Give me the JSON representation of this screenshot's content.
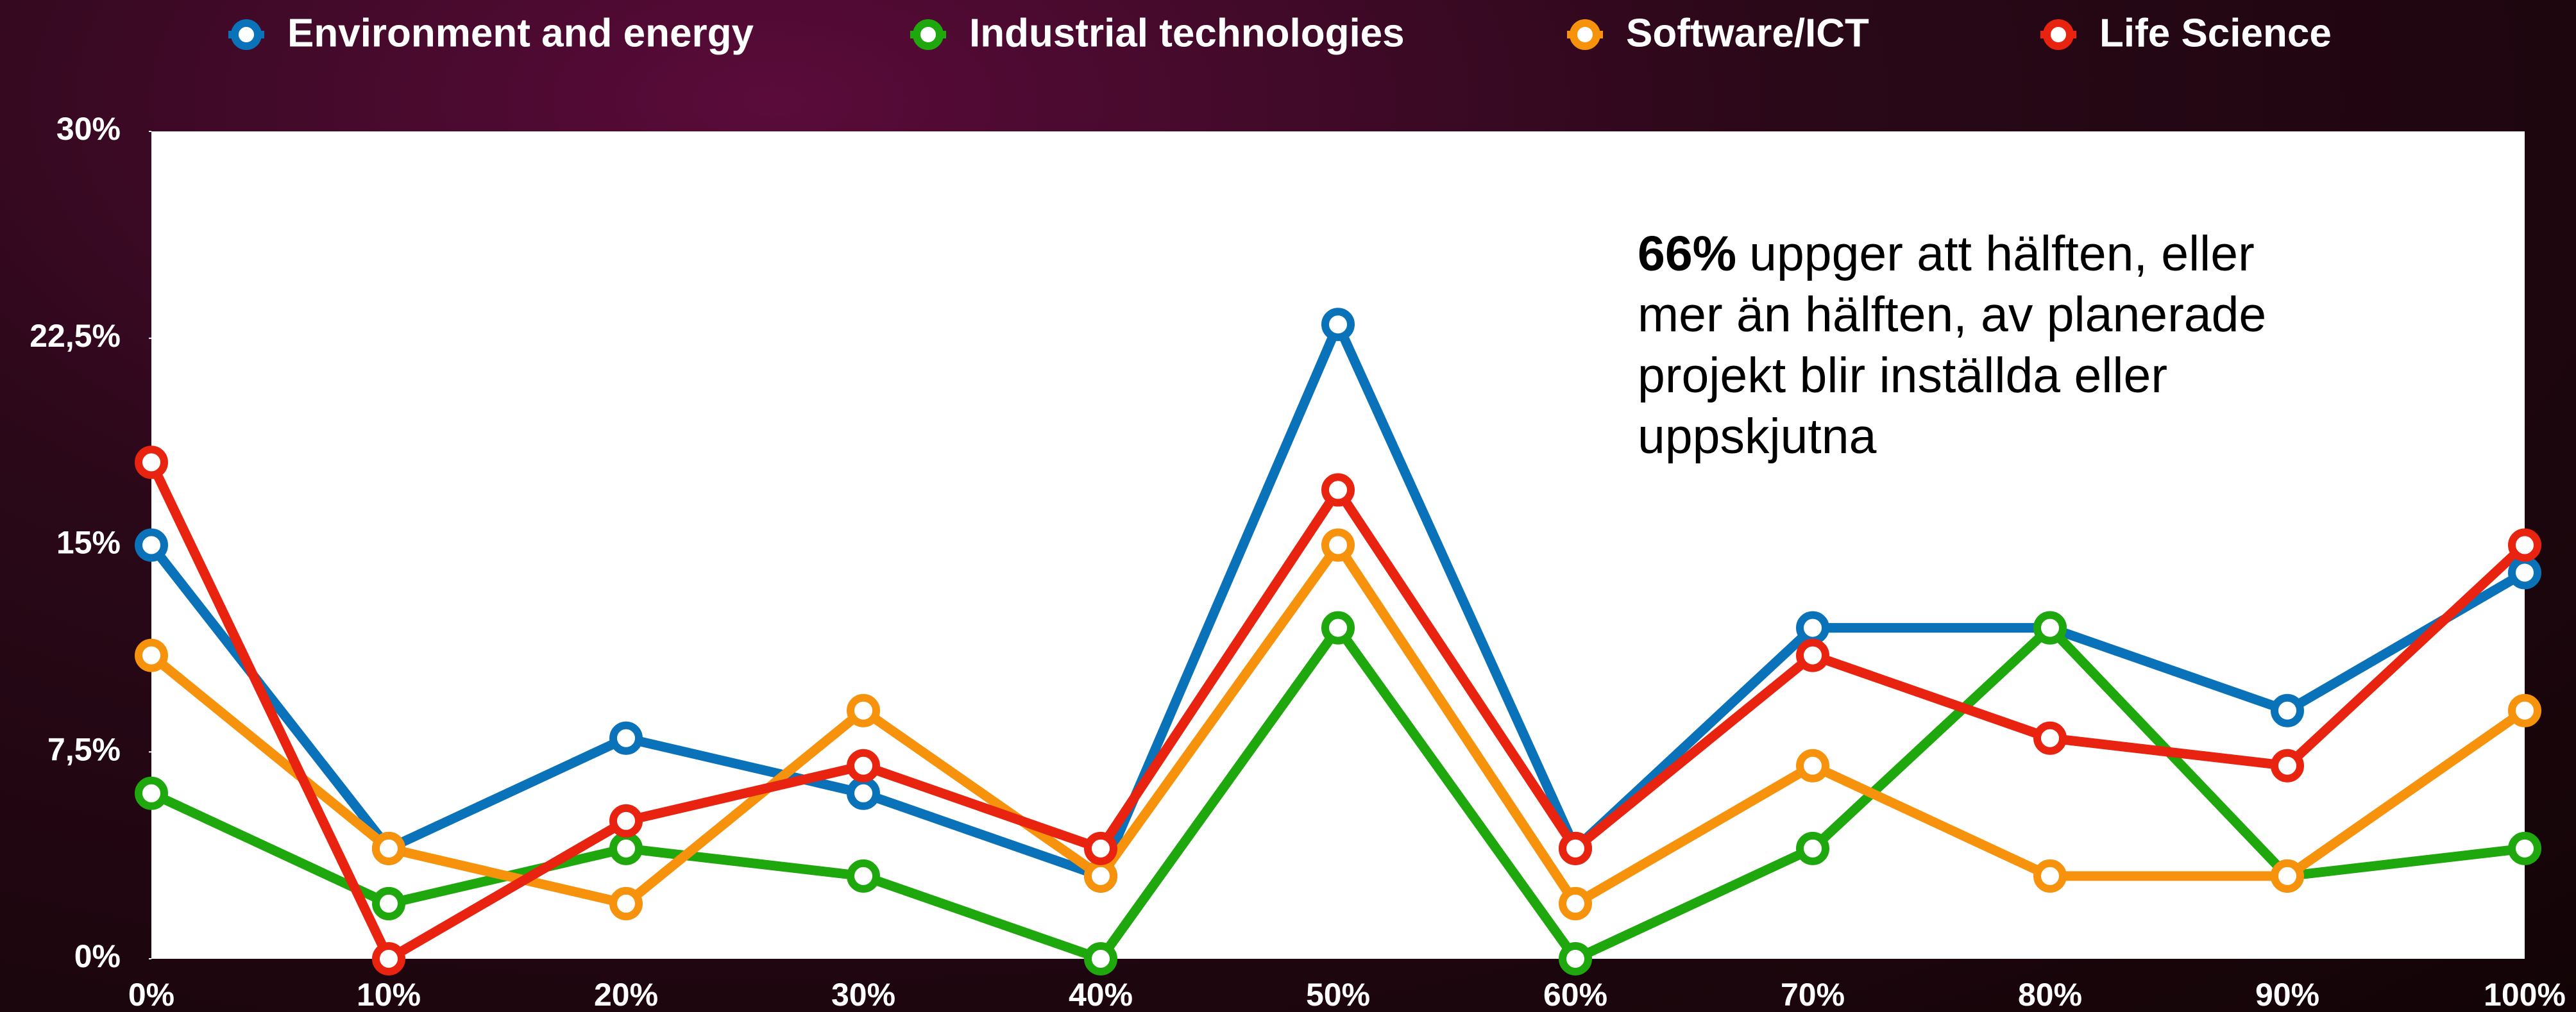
{
  "chart_data": {
    "type": "line",
    "categories": [
      "0%",
      "10%",
      "20%",
      "30%",
      "40%",
      "50%",
      "60%",
      "70%",
      "80%",
      "90%",
      "100%"
    ],
    "series": [
      {
        "name": "Environment and energy",
        "color": "#0a72b8",
        "values": [
          15,
          4,
          8,
          6,
          3,
          23,
          4,
          12,
          12,
          9,
          14
        ]
      },
      {
        "name": "Industrial technologies",
        "color": "#1fa80d",
        "values": [
          6,
          2,
          4,
          3,
          0,
          12,
          0,
          4,
          12,
          3,
          4
        ]
      },
      {
        "name": "Software/ICT",
        "color": "#f7920c",
        "values": [
          11,
          4,
          2,
          9,
          3,
          15,
          2,
          7,
          3,
          3,
          9
        ]
      },
      {
        "name": "Life Science",
        "color": "#e8230f",
        "values": [
          18,
          0,
          5,
          7,
          4,
          17,
          4,
          11,
          8,
          7,
          15
        ]
      }
    ],
    "ylim": [
      0,
      30
    ],
    "yticks": [
      {
        "value": 0,
        "label": "0%"
      },
      {
        "value": 7.5,
        "label": "7,5%"
      },
      {
        "value": 15,
        "label": "15%"
      },
      {
        "value": 22.5,
        "label": "22,5%"
      },
      {
        "value": 30,
        "label": "30%"
      }
    ],
    "legend": "top",
    "annotation": {
      "bold": "66%",
      "lines": [
        "uppger att hälften, eller",
        "mer än hälften, av planerade",
        "projekt blir inställda eller",
        "uppskjutna"
      ]
    }
  }
}
